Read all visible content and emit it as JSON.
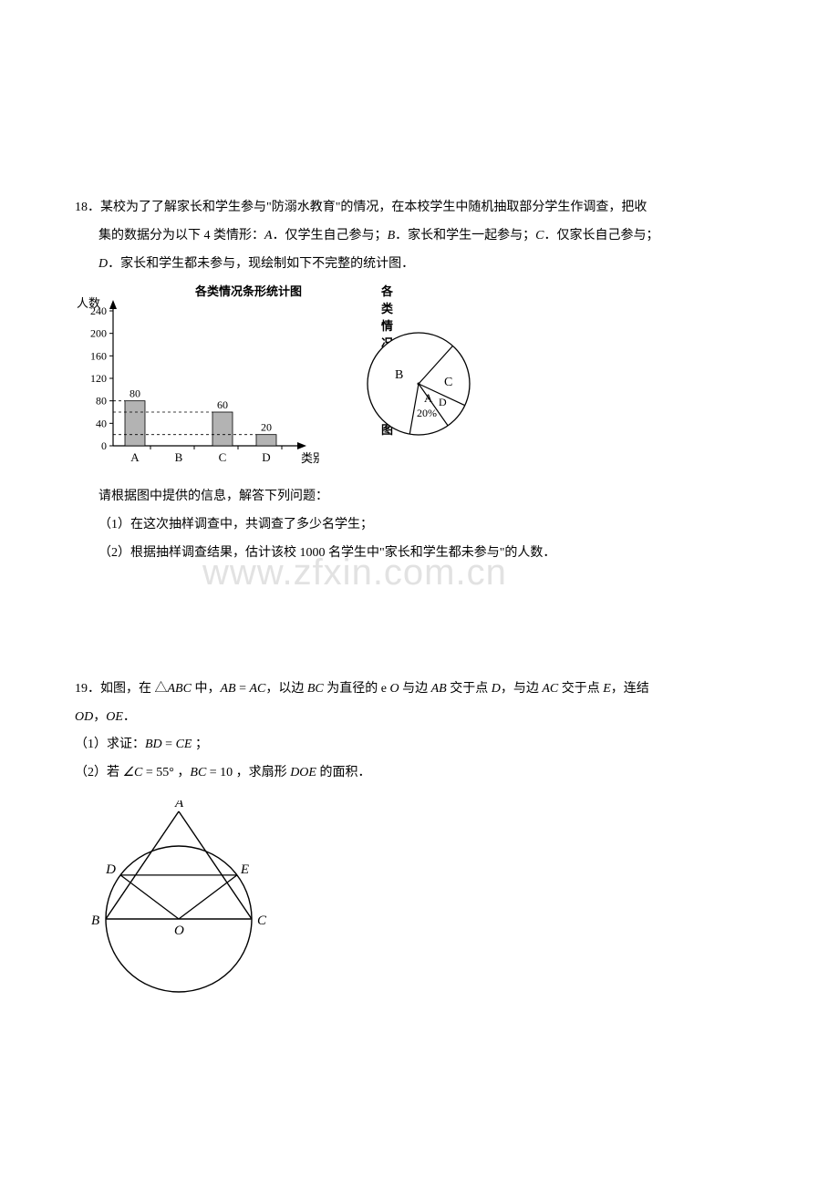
{
  "q18": {
    "number": "18．",
    "line1": "某校为了了解家长和学生参与\"防溺水教育\"的情况，在本校学生中随机抽取部分学生作调查，把收",
    "line2": "集的数据分为以下 4 类情形：",
    "opt_A": "A",
    "opt_A_text": "．仅学生自己参与；",
    "opt_B": "B",
    "opt_B_text": "．家长和学生一起参与；",
    "opt_C": "C",
    "opt_C_text": "．仅家长自己参与；",
    "opt_D": "D",
    "opt_D_text": "．家长和学生都未参与，现绘制如下不完整的统计图．",
    "post_chart": "请根据图中提供的信息，解答下列问题：",
    "sub1": "（1）在这次抽样调查中，共调查了多少名学生；",
    "sub2": "（2）根据抽样调查结果，估计该校 1000 名学生中\"家长和学生都未参与\"的人数．"
  },
  "bar_chart": {
    "title_left": "各类情况条形统计图",
    "title_right": "各类情况扇形统计图",
    "ylabel": "人数",
    "xlabel": "类别",
    "categories": [
      "A",
      "B",
      "C",
      "D"
    ],
    "values": [
      80,
      null,
      60,
      20
    ],
    "yticks": [
      "0",
      "40",
      "80",
      "120",
      "160",
      "200",
      "240"
    ],
    "value_labels": [
      "80",
      "",
      "60",
      "20"
    ],
    "axis_color": "#000000",
    "bar_fill": "#b3b3b3",
    "bar_stroke": "#000000",
    "dash_color": "#000000",
    "background": "#ffffff"
  },
  "pie_chart": {
    "labels": {
      "B": "B",
      "C": "C",
      "A": "A",
      "D": "D"
    },
    "a_percent": "20%",
    "stroke": "#000000",
    "fill": "#ffffff"
  },
  "q19": {
    "number": "19．",
    "seg1": "如图，在 △",
    "ABC": "ABC",
    "seg2": " 中，",
    "eq1a": "AB",
    "eq1_eq": " = ",
    "eq1b": "AC",
    "seg3": "，以边 ",
    "BC": "BC",
    "seg4": " 为直径的 e ",
    "O": "O",
    "seg5": " 与边 ",
    "AB": "AB",
    "seg6": " 交于点 ",
    "D": "D",
    "seg7": "，与边 ",
    "AC": "AC",
    "seg8": " 交于点 ",
    "E": "E",
    "seg9": "，连结",
    "line2a": "OD",
    "line2b": "，",
    "line2c": "OE",
    "line2d": "．",
    "sub1_pre": "（1）求证：",
    "sub1_a": "BD",
    "sub1_eq": " = ",
    "sub1_b": "CE",
    "sub1_post": " ；",
    "sub2_pre": "（2）若 ",
    "sub2_ang": "∠C",
    "sub2_eq1": " = 55° ，",
    "sub2_bc": "BC",
    "sub2_eq2": " = 10 ，求扇形 ",
    "sub2_doe": "DOE",
    "sub2_post": " 的面积．"
  },
  "geom": {
    "labels": {
      "A": "A",
      "B": "B",
      "C": "C",
      "D": "D",
      "E": "E",
      "O": "O"
    },
    "stroke": "#000000",
    "fill": "#ffffff"
  },
  "watermark": "www.zfxin.com.cn"
}
